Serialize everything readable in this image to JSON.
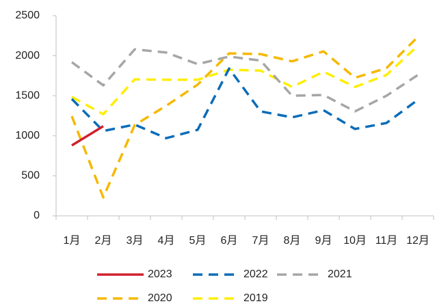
{
  "chart_data": {
    "type": "line",
    "categories": [
      "1月",
      "2月",
      "3月",
      "4月",
      "5月",
      "6月",
      "7月",
      "8月",
      "9月",
      "10月",
      "11月",
      "12月"
    ],
    "series": [
      {
        "name": "2023",
        "color": "#d0202e",
        "dashed": false,
        "values": [
          880,
          1120,
          null,
          null,
          null,
          null,
          null,
          null,
          null,
          null,
          null,
          null
        ]
      },
      {
        "name": "2022",
        "color": "#0a6cb8",
        "dashed": true,
        "values": [
          1460,
          1060,
          1140,
          970,
          1075,
          1840,
          1305,
          1230,
          1320,
          1085,
          1160,
          1450
        ]
      },
      {
        "name": "2021",
        "color": "#a6a6a6",
        "dashed": true,
        "values": [
          1920,
          1630,
          2080,
          2040,
          1895,
          1990,
          1940,
          1500,
          1510,
          1305,
          1500,
          1760
        ]
      },
      {
        "name": "2020",
        "color": "#f5b800",
        "dashed": true,
        "values": [
          1245,
          230,
          1135,
          1375,
          1640,
          2030,
          2020,
          1930,
          2055,
          1725,
          1845,
          2235
        ]
      },
      {
        "name": "2019",
        "color": "#ffee00",
        "dashed": true,
        "values": [
          1485,
          1270,
          1705,
          1700,
          1700,
          1825,
          1815,
          1610,
          1800,
          1610,
          1760,
          2125
        ]
      }
    ],
    "ylim": [
      0,
      2500
    ],
    "yticks": [
      0,
      500,
      1000,
      1500,
      2000,
      2500
    ],
    "grid": false,
    "legend": "bottom"
  }
}
